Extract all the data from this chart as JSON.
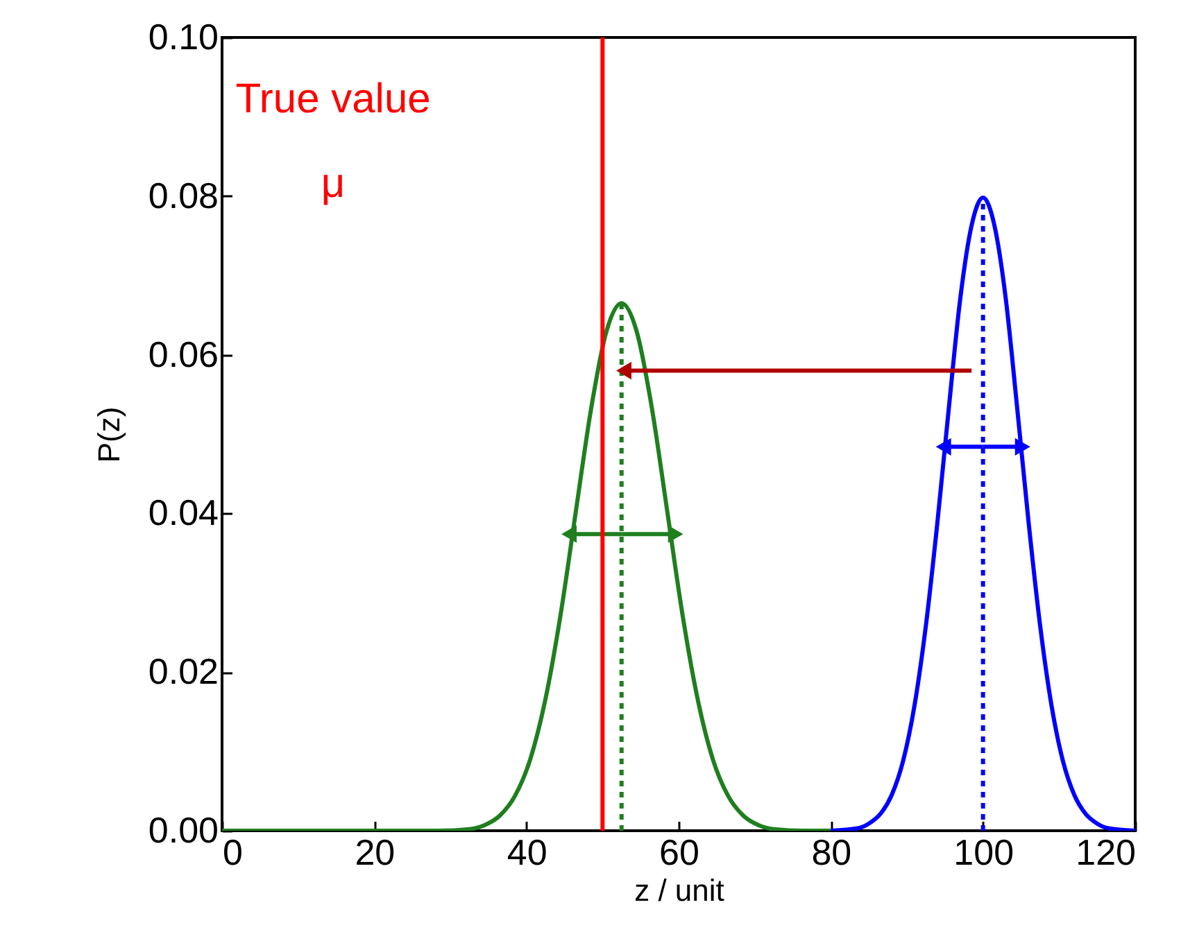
{
  "chart_data": {
    "type": "line",
    "xlabel": "z / unit",
    "ylabel": "P(z)",
    "xlim": [
      0,
      120
    ],
    "xticks": [
      0,
      20,
      40,
      60,
      80,
      100,
      120
    ],
    "ylim": [
      0,
      0.1
    ],
    "yticks": [
      {
        "value": 0,
        "label": "0.00"
      },
      {
        "value": 0.02,
        "label": "0.02"
      },
      {
        "value": 0.04,
        "label": "0.04"
      },
      {
        "value": 0.06,
        "label": "0.06"
      },
      {
        "value": 0.08,
        "label": "0.08"
      },
      {
        "value": 0.1,
        "label": "0.10"
      }
    ],
    "grid": false,
    "series": [
      {
        "color": "#1f7f1f",
        "x": [
          0,
          28.5,
          32.5,
          34.5,
          36.5,
          38.5,
          40.5,
          42.5,
          44.5,
          46.5,
          48.5,
          50.5,
          52.5,
          54.5,
          56.5,
          58.5,
          60.5,
          62.5,
          64.5,
          66.5,
          68.5,
          70.5,
          72.5,
          76.5,
          80
        ],
        "values": [
          0,
          0,
          0.0002,
          0.0007,
          0.0019,
          0.0044,
          0.009,
          0.0166,
          0.0273,
          0.0403,
          0.0532,
          0.0629,
          0.0665,
          0.0629,
          0.0532,
          0.0403,
          0.0273,
          0.0166,
          0.009,
          0.0044,
          0.0019,
          0.0007,
          0.0002,
          0,
          0
        ]
      },
      {
        "color": "#0000ff",
        "x": [
          80,
          83.5,
          85,
          86.5,
          88,
          89.5,
          91,
          92.5,
          94,
          95.5,
          97,
          98.5,
          100,
          101.5,
          103,
          104.5,
          106,
          107.5,
          109,
          110.5,
          112,
          113.5,
          115,
          116.5,
          120
        ],
        "values": [
          0,
          0.0003,
          0.0009,
          0.0021,
          0.0045,
          0.0088,
          0.0158,
          0.0259,
          0.0388,
          0.0532,
          0.067,
          0.0763,
          0.0798,
          0.0763,
          0.067,
          0.0532,
          0.0388,
          0.0259,
          0.0158,
          0.0088,
          0.0045,
          0.0021,
          0.0009,
          0.0003,
          0
        ]
      },
      {
        "color": "#1f7f1f",
        "line_style": "dotted",
        "x": [
          52.5,
          52.5
        ],
        "values": [
          0,
          0.0665
        ]
      },
      {
        "color": "#0000ff",
        "line_style": "dotted",
        "x": [
          100,
          100
        ],
        "values": [
          0,
          0.0798
        ]
      },
      {
        "color": "#1f7f1f",
        "marker": "triangle",
        "x": [
          52.6,
          45.6
        ],
        "values": [
          0.0374,
          0.0374
        ]
      },
      {
        "color": "#1f7f1f",
        "marker": "triangle",
        "x": [
          52.6,
          59.6
        ],
        "values": [
          0.0374,
          0.0374
        ]
      },
      {
        "color": "#0000ff",
        "marker": "triangle",
        "x": [
          100,
          94.8
        ],
        "values": [
          0.0484,
          0.0484
        ]
      },
      {
        "color": "#0000ff",
        "marker": "triangle",
        "x": [
          100,
          105.2
        ],
        "values": [
          0.0484,
          0.0484
        ]
      },
      {
        "color": "#b00000",
        "marker": "triangle",
        "x": [
          98.5,
          52.8
        ],
        "values": [
          0.058,
          0.058
        ]
      }
    ],
    "ref_lines": [
      {
        "axis": "x",
        "value": 50,
        "color": "#ff0000"
      }
    ],
    "annotations": [
      "True value",
      "μ"
    ]
  }
}
